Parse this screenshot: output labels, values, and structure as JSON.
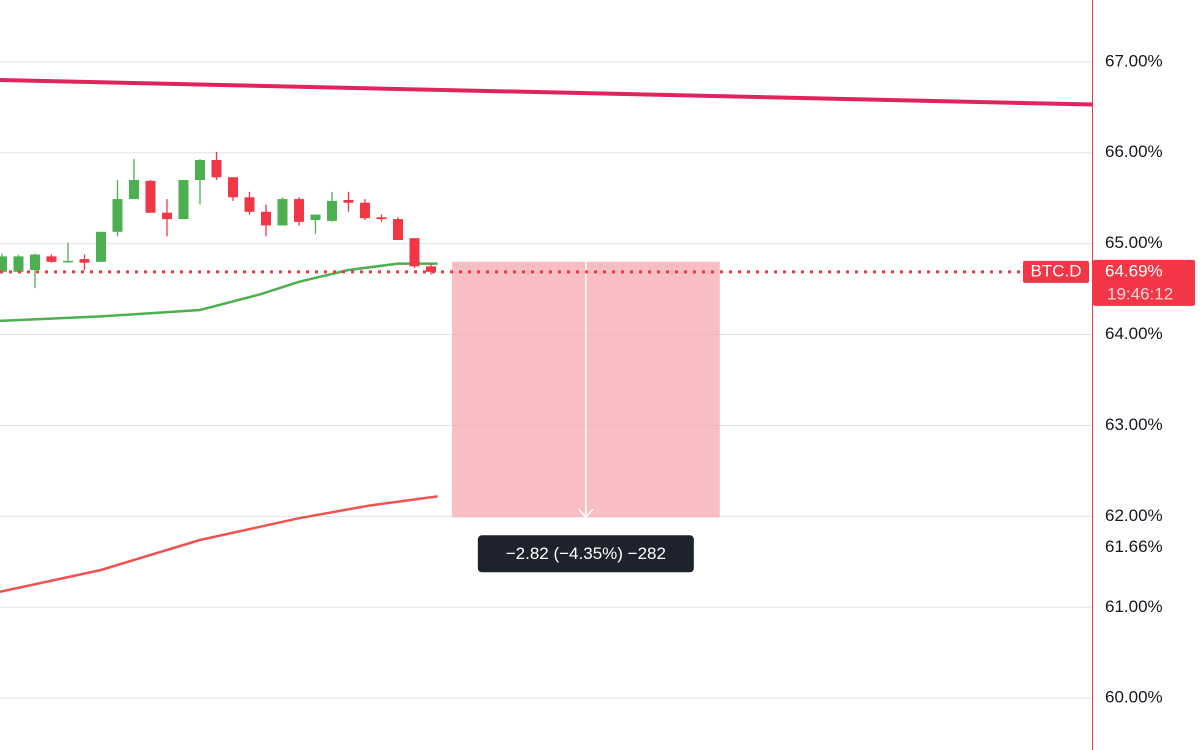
{
  "chart_data": {
    "type": "candlestick",
    "xlim": [
      -0.12,
      66.06
    ],
    "ylim": [
      59.43,
      67.68
    ],
    "yticks": [
      {
        "value": 67,
        "label": "67.00%"
      },
      {
        "value": 66,
        "label": "66.00%"
      },
      {
        "value": 65,
        "label": "65.00%"
      },
      {
        "value": 64,
        "label": "64.00%"
      },
      {
        "value": 63,
        "label": "63.00%"
      },
      {
        "value": 62,
        "label": "62.00%"
      },
      {
        "value": 61,
        "label": "61.00%"
      },
      {
        "value": 60,
        "label": "60.00%"
      }
    ],
    "grid": true,
    "up_color": "#4caf50",
    "down_color": "#f23645",
    "open": [
      64.69,
      64.69,
      64.71,
      64.86,
      64.81,
      64.83,
      64.8,
      65.13,
      65.49,
      65.69,
      65.34,
      65.27,
      65.7,
      65.92,
      65.73,
      65.51,
      65.35,
      65.2,
      65.49,
      65.26,
      65.25,
      65.48,
      65.45,
      65.29,
      65.27,
      65.06,
      64.75
    ],
    "high": [
      64.89,
      64.88,
      64.89,
      64.88,
      65.01,
      64.88,
      65.13,
      65.7,
      65.93,
      65.7,
      65.49,
      65.7,
      65.93,
      66.01,
      65.73,
      65.57,
      65.43,
      65.51,
      65.51,
      65.32,
      65.57,
      65.57,
      65.49,
      65.32,
      65.29,
      65.06,
      64.78
    ],
    "low": [
      64.67,
      64.67,
      64.51,
      64.79,
      64.79,
      64.71,
      64.8,
      65.08,
      65.49,
      65.34,
      65.08,
      65.27,
      65.43,
      65.7,
      65.47,
      65.32,
      65.08,
      65.2,
      65.2,
      65.11,
      65.24,
      65.35,
      65.26,
      65.24,
      65.04,
      64.73,
      64.66
    ],
    "close": [
      64.86,
      64.86,
      64.88,
      64.8,
      64.81,
      64.79,
      65.13,
      65.49,
      65.7,
      65.34,
      65.27,
      65.7,
      65.92,
      65.73,
      65.51,
      65.35,
      65.2,
      65.49,
      65.24,
      65.32,
      65.47,
      65.45,
      65.28,
      65.27,
      65.04,
      64.75,
      64.69
    ],
    "series": [
      {
        "color": "#e0245e",
        "x": [
          -0.12,
          66.06
        ],
        "values": [
          66.8,
          66.53
        ]
      },
      {
        "color": "#4caf50",
        "x": [
          -0.12,
          6,
          12,
          15.6,
          18,
          21,
          24,
          26.4
        ],
        "values": [
          64.15,
          64.2,
          64.27,
          64.44,
          64.58,
          64.71,
          64.78,
          64.78
        ]
      },
      {
        "color": "#ef5350",
        "x": [
          -0.12,
          6,
          12,
          18,
          22.3,
          26.4
        ],
        "values": [
          61.17,
          61.41,
          61.74,
          61.98,
          62.12,
          62.22
        ]
      }
    ],
    "price_line": {
      "symbol": "BTC.D",
      "value": 64.69,
      "label": "64.69%",
      "countdown": "19:46:12",
      "color": "#f23645"
    },
    "measure": {
      "x": [
        27.27,
        43.5
      ],
      "from": 64.8,
      "to": 61.99,
      "target": {
        "value": 61.66,
        "label": "61.66%"
      },
      "label": "−2.82 (−4.35%) −282"
    }
  }
}
